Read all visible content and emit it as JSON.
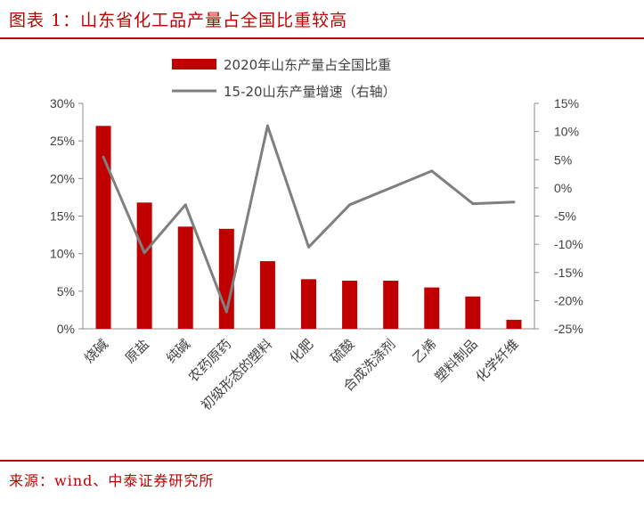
{
  "header": {
    "title": "图表 1：山东省化工品产量占全国比重较高"
  },
  "footer": {
    "source": "来源：wind、中泰证券研究所"
  },
  "colors": {
    "accent": "#c00000",
    "bar": "#c00000",
    "line": "#7f7f7f"
  },
  "chart_data": {
    "type": "bar",
    "title": "图表 1：山东省化工品产量占全国比重较高",
    "categories": [
      "烧碱",
      "原盐",
      "纯碱",
      "农药原药",
      "初级形态的塑料",
      "化肥",
      "硫酸",
      "合成洗涤剂",
      "乙烯",
      "塑料制品",
      "化学纤维"
    ],
    "series": [
      {
        "name": "2020年山东产量占全国比重",
        "type": "bar",
        "axis": "left",
        "values": [
          27.0,
          16.8,
          13.6,
          13.3,
          9.0,
          6.6,
          6.4,
          6.4,
          5.5,
          4.3,
          1.2
        ]
      },
      {
        "name": "15-20山东产量增速（右轴）",
        "type": "line",
        "axis": "right",
        "values": [
          5.5,
          -11.5,
          -3.0,
          -22.0,
          11.0,
          -10.5,
          -3.0,
          0.0,
          3.0,
          -2.8,
          -2.5
        ]
      }
    ],
    "y_left": {
      "lim": [
        0,
        30
      ],
      "ticks": [
        0,
        5,
        10,
        15,
        20,
        25,
        30
      ],
      "tick_labels": [
        "0%",
        "5%",
        "10%",
        "15%",
        "20%",
        "25%",
        "30%"
      ]
    },
    "y_right": {
      "lim": [
        -25,
        15
      ],
      "ticks": [
        -25,
        -20,
        -15,
        -10,
        -5,
        0,
        5,
        10,
        15
      ],
      "tick_labels": [
        "-25%",
        "-20%",
        "-15%",
        "-10%",
        "-5%",
        "0%",
        "5%",
        "10%",
        "15%"
      ]
    },
    "grid": false,
    "legend_position": "top"
  }
}
